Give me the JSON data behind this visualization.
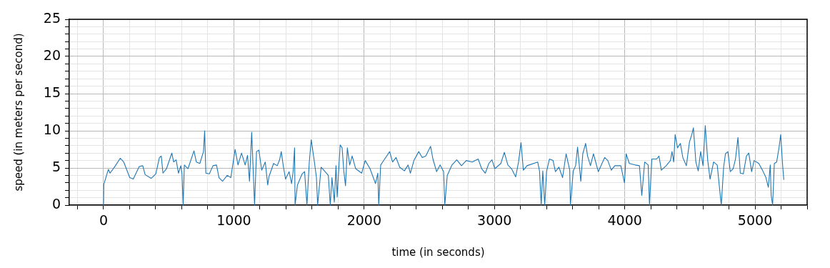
{
  "chart_data": {
    "type": "line",
    "xlabel": "time (in seconds)",
    "ylabel": "speed (in meters per second)",
    "xlim": [
      -263,
      5400
    ],
    "ylim": [
      0,
      25
    ],
    "xticks": [
      {
        "value": -200,
        "label": null
      },
      0,
      {
        "value": 200,
        "label": null
      },
      {
        "value": 400,
        "label": null
      },
      {
        "value": 600,
        "label": null
      },
      {
        "value": 800,
        "label": null
      },
      1000,
      {
        "value": 1200,
        "label": null
      },
      {
        "value": 1400,
        "label": null
      },
      {
        "value": 1600,
        "label": null
      },
      {
        "value": 1800,
        "label": null
      },
      2000,
      {
        "value": 2200,
        "label": null
      },
      {
        "value": 2400,
        "label": null
      },
      {
        "value": 2600,
        "label": null
      },
      {
        "value": 2800,
        "label": null
      },
      3000,
      {
        "value": 3200,
        "label": null
      },
      {
        "value": 3400,
        "label": null
      },
      {
        "value": 3600,
        "label": null
      },
      {
        "value": 3800,
        "label": null
      },
      4000,
      {
        "value": 4200,
        "label": null
      },
      {
        "value": 4400,
        "label": null
      },
      {
        "value": 4600,
        "label": null
      },
      {
        "value": 4800,
        "label": null
      },
      5000,
      {
        "value": 5200,
        "label": null
      },
      {
        "value": 5400,
        "label": null
      }
    ],
    "yticks": [
      0,
      {
        "value": 1,
        "label": null
      },
      {
        "value": 2,
        "label": null
      },
      {
        "value": 3,
        "label": null
      },
      {
        "value": 4,
        "label": null
      },
      5,
      {
        "value": 6,
        "label": null
      },
      {
        "value": 7,
        "label": null
      },
      {
        "value": 8,
        "label": null
      },
      {
        "value": 9,
        "label": null
      },
      10,
      {
        "value": 11,
        "label": null
      },
      {
        "value": 12,
        "label": null
      },
      {
        "value": 13,
        "label": null
      },
      {
        "value": 14,
        "label": null
      },
      15,
      {
        "value": 16,
        "label": null
      },
      {
        "value": 17,
        "label": null
      },
      {
        "value": 18,
        "label": null
      },
      {
        "value": 19,
        "label": null
      },
      20,
      {
        "value": 21,
        "label": null
      },
      {
        "value": 22,
        "label": null
      },
      {
        "value": 23,
        "label": null
      },
      {
        "value": 24,
        "label": null
      },
      25
    ],
    "grid": true,
    "marker": "none",
    "line_style": "solid",
    "series": [
      {
        "color": "#1f77b4",
        "x": [
          0,
          2,
          37,
          50,
          91,
          128,
          155,
          201,
          228,
          274,
          301,
          319,
          365,
          401,
          429,
          443,
          456,
          483,
          524,
          538,
          557,
          575,
          593,
          602,
          611,
          620,
          648,
          694,
          712,
          739,
          767,
          776,
          785,
          812,
          840,
          867,
          886,
          913,
          949,
          977,
          995,
          1010,
          1032,
          1059,
          1087,
          1105,
          1120,
          1137,
          1159,
          1174,
          1192,
          1214,
          1241,
          1260,
          1269,
          1305,
          1333,
          1351,
          1364,
          1379,
          1397,
          1424,
          1443,
          1455,
          1466,
          1470,
          1488,
          1524,
          1543,
          1561,
          1579,
          1594,
          1616,
          1634,
          1643,
          1670,
          1725,
          1740,
          1753,
          1771,
          1784,
          1793,
          1816,
          1831,
          1844,
          1857,
          1871,
          1889,
          1908,
          1935,
          1981,
          2008,
          2045,
          2087,
          2105,
          2112,
          2127,
          2154,
          2196,
          2218,
          2245,
          2273,
          2309,
          2337,
          2355,
          2382,
          2419,
          2446,
          2473,
          2510,
          2528,
          2556,
          2583,
          2610,
          2619,
          2638,
          2674,
          2711,
          2747,
          2784,
          2829,
          2875,
          2902,
          2930,
          2957,
          2981,
          3003,
          3049,
          3076,
          3103,
          3131,
          3163,
          3185,
          3204,
          3222,
          3250,
          3332,
          3346,
          3359,
          3371,
          3386,
          3400,
          3422,
          3450,
          3468,
          3495,
          3523,
          3550,
          3578,
          3583,
          3605,
          3623,
          3638,
          3656,
          3663,
          3678,
          3700,
          3715,
          3737,
          3760,
          3797,
          3846,
          3870,
          3897,
          3924,
          3970,
          3998,
          4011,
          4035,
          4080,
          4113,
          4131,
          4153,
          4180,
          4190,
          4208,
          4245,
          4263,
          4281,
          4318,
          4351,
          4363,
          4376,
          4387,
          4405,
          4427,
          4446,
          4473,
          4497,
          4515,
          4527,
          4546,
          4564,
          4583,
          4601,
          4618,
          4637,
          4655,
          4682,
          4710,
          4728,
          4741,
          4759,
          4773,
          4792,
          4810,
          4832,
          4850,
          4869,
          4887,
          4910,
          4934,
          4952,
          4974,
          4993,
          5029,
          5057,
          5084,
          5102,
          5117,
          5124,
          5135,
          5148,
          5166,
          5184,
          5197,
          5212,
          5221
        ],
        "values": [
          0,
          2.8,
          4.8,
          4.3,
          5.3,
          6.3,
          5.8,
          3.7,
          3.5,
          5.2,
          5.3,
          4.1,
          3.6,
          4.2,
          6.4,
          6.6,
          4.3,
          4.9,
          7.0,
          5.8,
          6.1,
          4.3,
          5.3,
          4.2,
          0,
          5.4,
          4.9,
          7.3,
          5.8,
          5.6,
          7.2,
          10.0,
          4.3,
          4.2,
          5.3,
          5.4,
          3.7,
          3.2,
          4.0,
          3.7,
          5.8,
          7.5,
          5.4,
          7.0,
          5.4,
          6.7,
          3.2,
          9.8,
          0,
          7.2,
          7.4,
          4.7,
          5.8,
          2.7,
          3.8,
          5.6,
          5.3,
          6.1,
          7.2,
          5.3,
          3.5,
          4.5,
          2.9,
          4.5,
          7.7,
          0,
          2.7,
          4.2,
          4.5,
          0,
          5.8,
          8.8,
          6.1,
          3.7,
          0,
          5.1,
          4.0,
          0,
          3.7,
          0.4,
          5.3,
          1.1,
          8.1,
          7.7,
          4.6,
          2.6,
          7.7,
          5.4,
          6.6,
          4.9,
          4.3,
          6.0,
          4.9,
          2.9,
          4.3,
          0,
          5.4,
          6.1,
          7.2,
          5.8,
          6.4,
          5.1,
          4.6,
          5.4,
          4.3,
          6.0,
          7.2,
          6.4,
          6.6,
          7.9,
          6.2,
          4.5,
          5.4,
          4.5,
          0,
          4.0,
          5.4,
          6.1,
          5.3,
          6.0,
          5.8,
          6.2,
          4.9,
          4.3,
          5.6,
          6.1,
          4.9,
          5.6,
          7.1,
          5.4,
          4.9,
          3.8,
          5.8,
          8.4,
          4.7,
          5.3,
          5.8,
          4.6,
          0,
          4.6,
          0,
          4.5,
          6.2,
          6.0,
          4.5,
          5.1,
          3.7,
          6.9,
          4.7,
          0,
          4.6,
          5.3,
          7.8,
          4.5,
          3.2,
          6.9,
          8.3,
          6.6,
          5.3,
          6.9,
          4.5,
          6.4,
          6.0,
          4.7,
          5.3,
          5.3,
          3.0,
          6.9,
          5.6,
          5.4,
          5.3,
          1.3,
          5.8,
          5.4,
          0,
          6.2,
          6.2,
          6.6,
          4.7,
          5.3,
          6.0,
          7.2,
          5.8,
          9.5,
          7.7,
          8.3,
          6.4,
          5.3,
          8.5,
          9.5,
          10.4,
          5.8,
          4.6,
          7.2,
          5.3,
          10.7,
          6.0,
          3.5,
          5.8,
          5.4,
          2.2,
          0,
          5.1,
          6.9,
          7.2,
          4.5,
          4.9,
          6.2,
          9.1,
          4.3,
          4.2,
          6.6,
          7.0,
          4.5,
          6.0,
          5.6,
          4.7,
          3.7,
          2.4,
          5.4,
          1.3,
          0,
          5.6,
          5.8,
          7.7,
          9.5,
          5.3,
          3.4
        ]
      }
    ]
  }
}
